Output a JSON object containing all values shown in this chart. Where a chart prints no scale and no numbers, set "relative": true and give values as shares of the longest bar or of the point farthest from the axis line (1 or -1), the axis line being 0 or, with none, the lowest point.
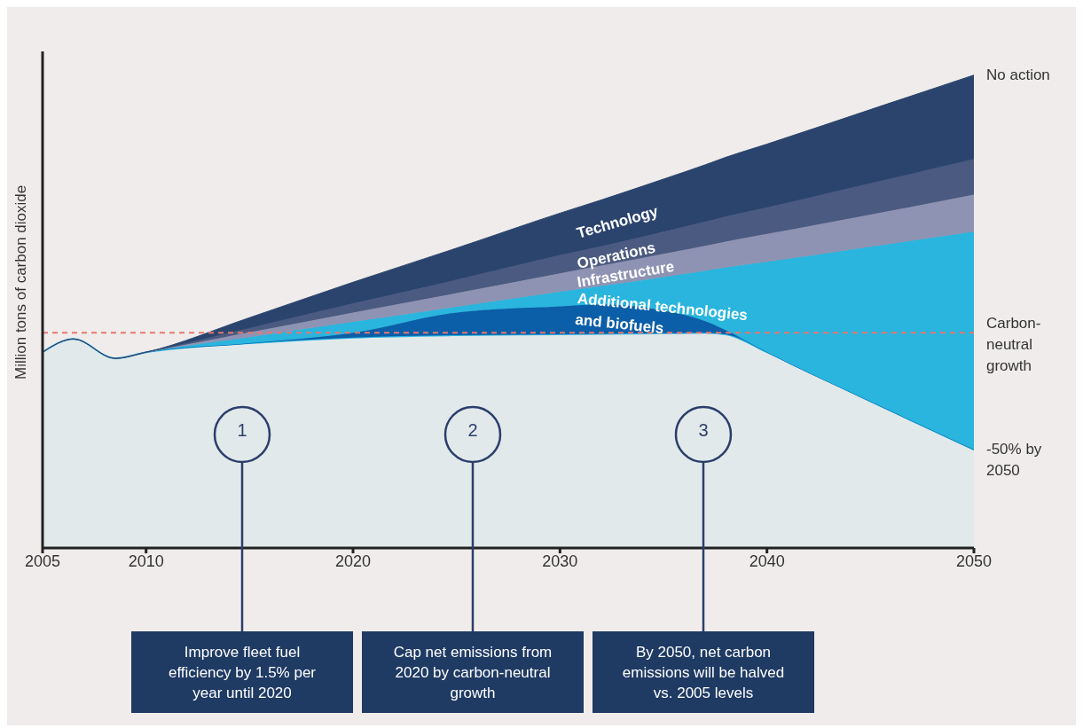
{
  "chart_data": {
    "type": "area",
    "relative": true,
    "stacked": true,
    "ylabel": "Million tons of carbon dioxide",
    "x": [
      2005,
      2006.5,
      2008.5,
      2010,
      2015,
      2020,
      2025,
      2030,
      2032,
      2035,
      2037,
      2038,
      2040,
      2045,
      2050
    ],
    "xlim": [
      2005,
      2050
    ],
    "xticks": [
      2005,
      2010,
      2020,
      2030,
      2040,
      2050
    ],
    "series": [
      {
        "name": "-50% by 2050",
        "color": "#29b6e6",
        "values": [
          0.414,
          0.442,
          0.401,
          0.414,
          0.433,
          0.445,
          0.45,
          0.452,
          0.453,
          0.454,
          0.455,
          0.452,
          0.414,
          0.31,
          0.208
        ]
      },
      {
        "color": "#0b5ea8",
        "values": [
          0,
          0,
          0,
          0,
          0,
          0.01,
          0.048,
          0.059,
          0.062,
          0.048,
          0.025,
          0.009,
          0,
          0,
          0
        ]
      },
      {
        "name": "Additional technologies and biofuels",
        "color": "#29b5dd",
        "values": [
          0,
          0,
          0,
          0,
          0.013,
          0.023,
          0.012,
          0.031,
          0.039,
          0.071,
          0.106,
          0.132,
          0.191,
          0.327,
          0.461
        ]
      },
      {
        "name": "Infrastructure",
        "color": "#8f93b3",
        "values": [
          0,
          0,
          0,
          0,
          0.01,
          0.02,
          0.029,
          0.039,
          0.043,
          0.049,
          0.053,
          0.055,
          0.059,
          0.068,
          0.078
        ]
      },
      {
        "name": "Operations",
        "color": "#4b5a80",
        "values": [
          0,
          0,
          0,
          0,
          0.009,
          0.019,
          0.028,
          0.038,
          0.041,
          0.047,
          0.051,
          0.053,
          0.056,
          0.066,
          0.075
        ]
      },
      {
        "name": "Technology",
        "color": "#2b446e",
        "values": [
          0,
          0,
          0,
          0,
          0.022,
          0.045,
          0.067,
          0.089,
          0.098,
          0.111,
          0.12,
          0.125,
          0.134,
          0.156,
          0.178
        ]
      }
    ],
    "ref_lines": [
      {
        "axis": "y",
        "value": 0.455,
        "label": "Carbon-neutral growth",
        "color": "#e8776f",
        "line_style": "dashed"
      }
    ],
    "annotations": [
      {
        "text": "No action",
        "x": 2050,
        "y": 1.0
      },
      "1",
      "Improve fleet fuel efficiency by 1.5% per year until 2020",
      "2",
      "Cap net emissions from 2020 by carbon-neutral growth",
      "3",
      "By 2050, net carbon emissions will be halved vs. 2005 levels"
    ]
  }
}
